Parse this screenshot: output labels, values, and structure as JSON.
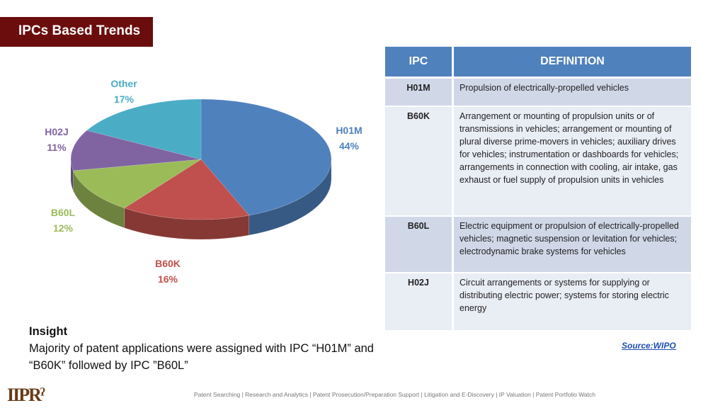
{
  "header": {
    "title": "IPCs Based Trends"
  },
  "chart_data": {
    "type": "pie",
    "style": "3d",
    "slices": [
      {
        "label": "H01M",
        "value": 44,
        "display": "44%",
        "color": "#4f81bd"
      },
      {
        "label": "B60K",
        "value": 16,
        "display": "16%",
        "color": "#c0504d"
      },
      {
        "label": "B60L",
        "value": 12,
        "display": "12%",
        "color": "#9bbb59"
      },
      {
        "label": "H02J",
        "value": 11,
        "display": "11%",
        "color": "#8064a2"
      },
      {
        "label": "Other",
        "value": 17,
        "display": "17%",
        "color": "#4bacc6"
      }
    ]
  },
  "table": {
    "headers": [
      "IPC",
      "DEFINITION"
    ],
    "rows": [
      {
        "ipc": "H01M",
        "definition": "Propulsion of electrically-propelled vehicles"
      },
      {
        "ipc": "B60K",
        "definition": "Arrangement or mounting of propulsion units or of transmissions in vehicles; arrangement or mounting of plural diverse prime-movers in vehicles; auxiliary drives for vehicles; instrumentation or dashboards for vehicles; arrangements in connection with cooling, air intake, gas exhaust or fuel supply of propulsion units in vehicles"
      },
      {
        "ipc": "B60L",
        "definition": "Electric equipment or propulsion of electrically-propelled vehicles; magnetic suspension or levitation for vehicles; electrodynamic brake systems for vehicles"
      },
      {
        "ipc": "H02J",
        "definition": "Circuit arrangements or systems for supplying or distributing electric power; systems for storing electric energy"
      }
    ]
  },
  "insight": {
    "heading": "Insight",
    "text": "Majority of patent applications were assigned with IPC “H01M” and “B60K” followed by IPC ”B60L”"
  },
  "source": "Source:WIPO",
  "footer": {
    "logo": "IIPRD",
    "services": "Patent Searching | Research and Analytics | Patent Prosecution/Preparation Support | Litigation and E-Discovery | IP Valuation | Patent Portfolio Watch"
  }
}
